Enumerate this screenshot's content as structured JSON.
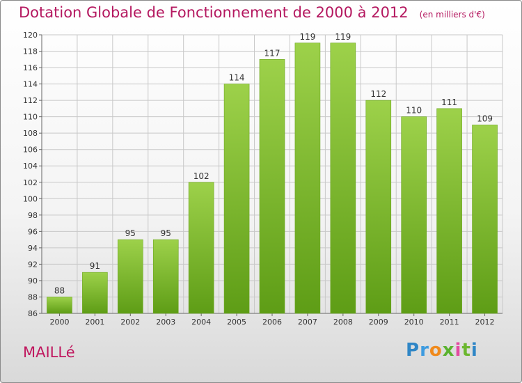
{
  "title": "Dotation Globale de Fonctionnement de 2000 à 2012",
  "unit": "(en milliers d'€)",
  "place": "MAILLé",
  "logo": [
    "P",
    "r",
    "o",
    "x",
    "i",
    "t",
    "i"
  ],
  "colors": {
    "title": "#b4175f",
    "bar_top": "#9dd14a",
    "bar_bottom": "#5e9d16",
    "grid": "#c8c8c8"
  },
  "chart_data": {
    "type": "bar",
    "categories": [
      "2000",
      "2001",
      "2002",
      "2003",
      "2004",
      "2005",
      "2006",
      "2007",
      "2008",
      "2009",
      "2010",
      "2011",
      "2012"
    ],
    "values": [
      88,
      91,
      95,
      95,
      102,
      114,
      117,
      119,
      119,
      112,
      110,
      111,
      109
    ],
    "ylim": [
      86,
      120
    ],
    "yticks": [
      86,
      88,
      90,
      92,
      94,
      96,
      98,
      100,
      102,
      104,
      106,
      108,
      110,
      112,
      114,
      116,
      118,
      120
    ],
    "grid": true,
    "title": "Dotation Globale de Fonctionnement de 2000 à 2012",
    "xlabel": "",
    "ylabel": ""
  }
}
